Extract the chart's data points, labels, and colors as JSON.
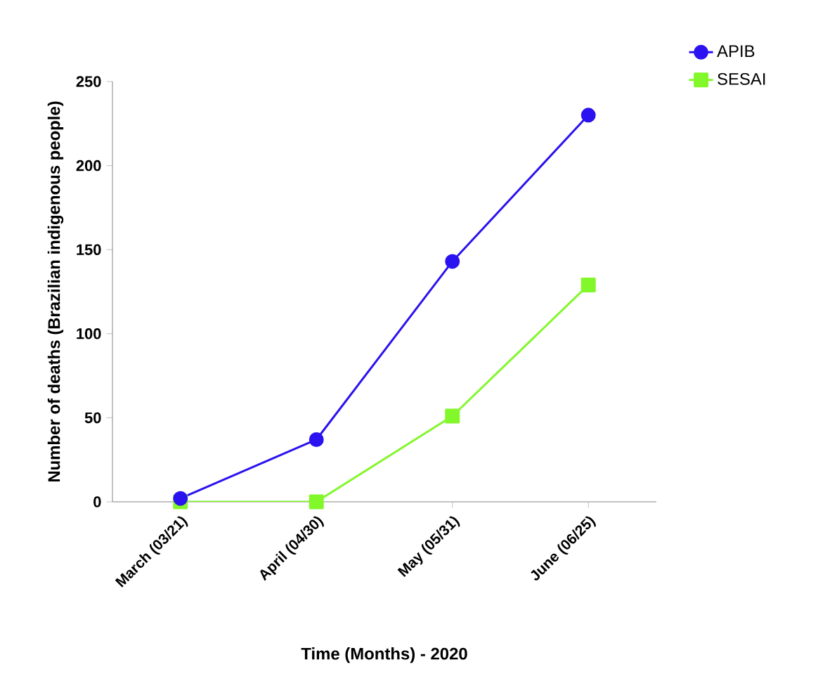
{
  "chart_data": {
    "type": "line",
    "xlabel": "Time (Months) - 2020",
    "ylabel": "Number of deaths (Brazilian indigenous people)",
    "categories": [
      "March (03/21)",
      "April (04/30)",
      "May (05/31)",
      "June (06/25)"
    ],
    "series": [
      {
        "name": "APIB",
        "color": "#2b12f0",
        "marker": "circle",
        "values": [
          2,
          37,
          143,
          230
        ]
      },
      {
        "name": "SESAI",
        "color": "#82f72a",
        "marker": "square",
        "values": [
          0,
          0,
          51,
          129
        ]
      }
    ],
    "ylim": [
      0,
      250
    ],
    "yticks": [
      0,
      50,
      100,
      150,
      200,
      250
    ],
    "grid": false,
    "legend": "top right",
    "line_style": "solid"
  }
}
